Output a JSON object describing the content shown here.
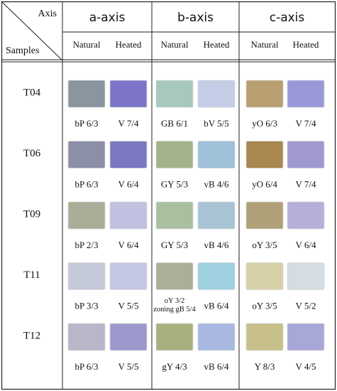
{
  "header": {
    "axis_label": "Axis",
    "samples_label": "Samples",
    "groups": [
      "a-axis",
      "b-axis",
      "c-axis"
    ],
    "subheaders": [
      "Natural",
      "Heated",
      "Natural",
      "Heated",
      "Natural",
      "Heated"
    ]
  },
  "table": {
    "rows": [
      {
        "sample": "T04",
        "codes": [
          "bP 6/3",
          "V 7/4",
          "GB 6/1",
          "bV 5/5",
          "yO 6/3",
          "V 7/4"
        ]
      },
      {
        "sample": "T06",
        "codes": [
          "bP 6/3",
          "V 6/4",
          "GY 5/3",
          "vB 4/6",
          "yO 6/4",
          "V 7/4"
        ]
      },
      {
        "sample": "T09",
        "codes": [
          "bP 2/3",
          "V 6/4",
          "GY 5/3",
          "vB 4/6",
          "oY 3/5",
          "V 6/4"
        ]
      },
      {
        "sample": "T11",
        "codes": [
          "bP 3/3",
          "V 5/5",
          [
            "oY 3/2",
            "zoning gB 5/4"
          ],
          "vB 6/4",
          "oY 3/5",
          "V 5/2"
        ]
      },
      {
        "sample": "T12",
        "codes": [
          "bP 6/3",
          "V 5/5",
          "gY 4/3",
          "vB 6/4",
          "Y 8/3",
          "V 4/5"
        ]
      }
    ]
  }
}
